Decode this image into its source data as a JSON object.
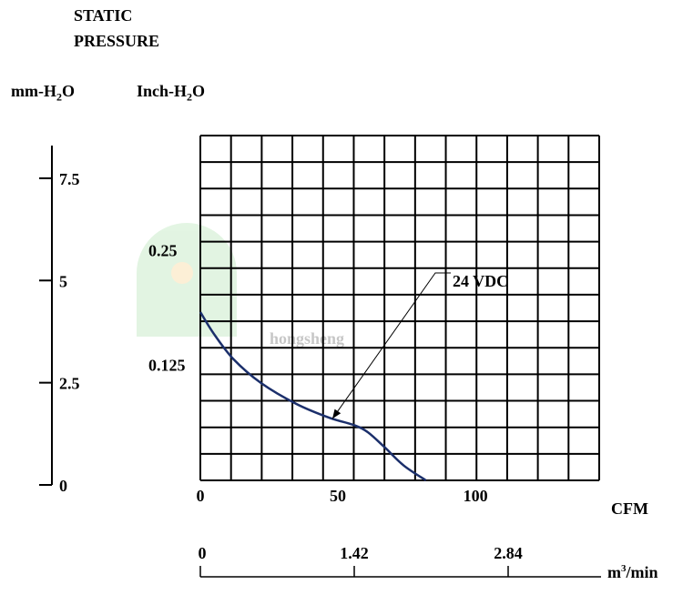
{
  "titles": {
    "line1": "STATIC",
    "line2": "PRESSURE"
  },
  "left_axis": {
    "base": "mm-H",
    "sub": "2",
    "tail": "O",
    "ticks": [
      {
        "value": 7.5,
        "label": "7.5"
      },
      {
        "value": 5,
        "label": "5"
      },
      {
        "value": 2.5,
        "label": "2.5"
      },
      {
        "value": 0,
        "label": "0"
      }
    ]
  },
  "inner_axis": {
    "base": "Inch-H",
    "sub": "2",
    "tail": "O",
    "ticks": [
      {
        "value": 0.25,
        "label": "0.25"
      },
      {
        "value": 0.125,
        "label": "0.125"
      }
    ]
  },
  "bottom_axis": {
    "title": "CFM",
    "ticks": [
      {
        "value": 0,
        "label": "0"
      },
      {
        "value": 50,
        "label": "50"
      },
      {
        "value": 100,
        "label": "100"
      }
    ]
  },
  "metric_axis": {
    "base": "m",
    "sup": "3",
    "tail": "/min",
    "ticks": [
      {
        "value": 0,
        "label": "0"
      },
      {
        "value": 1.42,
        "label": "1.42"
      },
      {
        "value": 2.84,
        "label": "2.84"
      }
    ]
  },
  "watermark": "hongsheng",
  "chart_data": {
    "type": "line",
    "xlim": [
      0,
      145
    ],
    "ylim_inch": [
      0,
      0.375
    ],
    "grid": true,
    "series": [
      {
        "name": "24 VDC",
        "color": "#1b2f6b",
        "x": [
          0,
          5,
          12,
          22,
          35,
          47,
          56,
          61,
          67,
          74,
          82
        ],
        "y": [
          0.183,
          0.159,
          0.132,
          0.106,
          0.083,
          0.068,
          0.06,
          0.052,
          0.036,
          0.016,
          0.0
        ]
      }
    ],
    "annotation": {
      "text": "24 VDC",
      "target_x": 48,
      "target_y": 0.067
    }
  }
}
